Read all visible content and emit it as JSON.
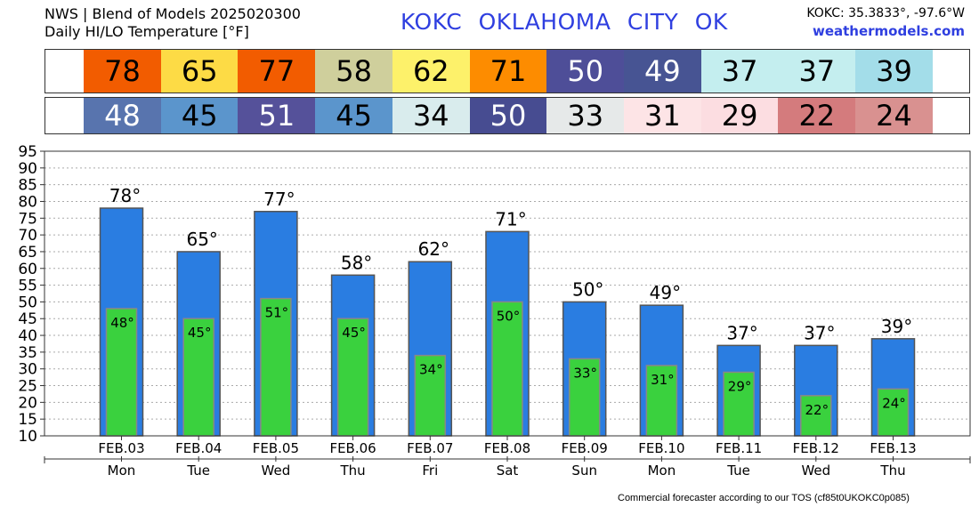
{
  "header": {
    "title_line1": "NWS | Blend of Models 2025020300",
    "title_line2": "Daily HI/LO Temperature [°F]",
    "station": "KOKC   OKLAHOMA CITY   OK",
    "coords": "KOKC: 35.3833°, -97.6°W",
    "site": "weathermodels.com"
  },
  "footer": "Commercial forecaster according to our TOS (cf85t0UKOKC0p085)",
  "colors": {
    "hi_bar": "#2a7de1",
    "lo_bar": "#3ad13e",
    "hi_cells": [
      "#f25c00",
      "#fddb45",
      "#f25c00",
      "#cfcf9c",
      "#fdf16a",
      "#fd8c00",
      "#4e4e98",
      "#475493",
      "#c4eeef",
      "#c4eeef",
      "#a3dde9"
    ],
    "lo_cells": [
      "#5874ae",
      "#5b95cc",
      "#55519a",
      "#5b95cc",
      "#d9eced",
      "#474c91",
      "#e6e9e9",
      "#fde4e6",
      "#fcdde1",
      "#d47b7d",
      "#d99190"
    ],
    "hi_text_white": [
      false,
      false,
      false,
      false,
      false,
      false,
      true,
      true,
      false,
      false,
      false
    ],
    "lo_text_white": [
      true,
      false,
      true,
      false,
      false,
      true,
      false,
      false,
      false,
      false,
      false
    ]
  },
  "chart_data": {
    "type": "bar",
    "categories": [
      "FEB.03",
      "FEB.04",
      "FEB.05",
      "FEB.06",
      "FEB.07",
      "FEB.08",
      "FEB.09",
      "FEB.10",
      "FEB.11",
      "FEB.12",
      "FEB.13"
    ],
    "weekdays": [
      "Mon",
      "Tue",
      "Wed",
      "Thu",
      "Fri",
      "Sat",
      "Sun",
      "Mon",
      "Tue",
      "Wed",
      "Thu"
    ],
    "series": [
      {
        "values": [
          78,
          65,
          77,
          58,
          62,
          71,
          50,
          49,
          37,
          37,
          39
        ]
      },
      {
        "values": [
          48,
          45,
          51,
          45,
          34,
          50,
          33,
          31,
          29,
          22,
          24
        ]
      }
    ],
    "hi_labels": [
      "78°",
      "65°",
      "77°",
      "58°",
      "62°",
      "71°",
      "50°",
      "49°",
      "37°",
      "37°",
      "39°"
    ],
    "lo_labels": [
      "48°",
      "45°",
      "51°",
      "45°",
      "34°",
      "50°",
      "33°",
      "31°",
      "29°",
      "22°",
      "24°"
    ],
    "hi_cell_labels": [
      "78",
      "65",
      "77",
      "58",
      "62",
      "71",
      "50",
      "49",
      "37",
      "37",
      "39"
    ],
    "lo_cell_labels": [
      "48",
      "45",
      "51",
      "45",
      "34",
      "50",
      "33",
      "31",
      "29",
      "22",
      "24"
    ],
    "y_ticks": [
      "10",
      "15",
      "20",
      "25",
      "30",
      "35",
      "40",
      "45",
      "50",
      "55",
      "60",
      "65",
      "70",
      "75",
      "80",
      "85",
      "90",
      "95"
    ],
    "ylim": [
      10,
      95
    ],
    "grid": true,
    "legend": "none"
  }
}
